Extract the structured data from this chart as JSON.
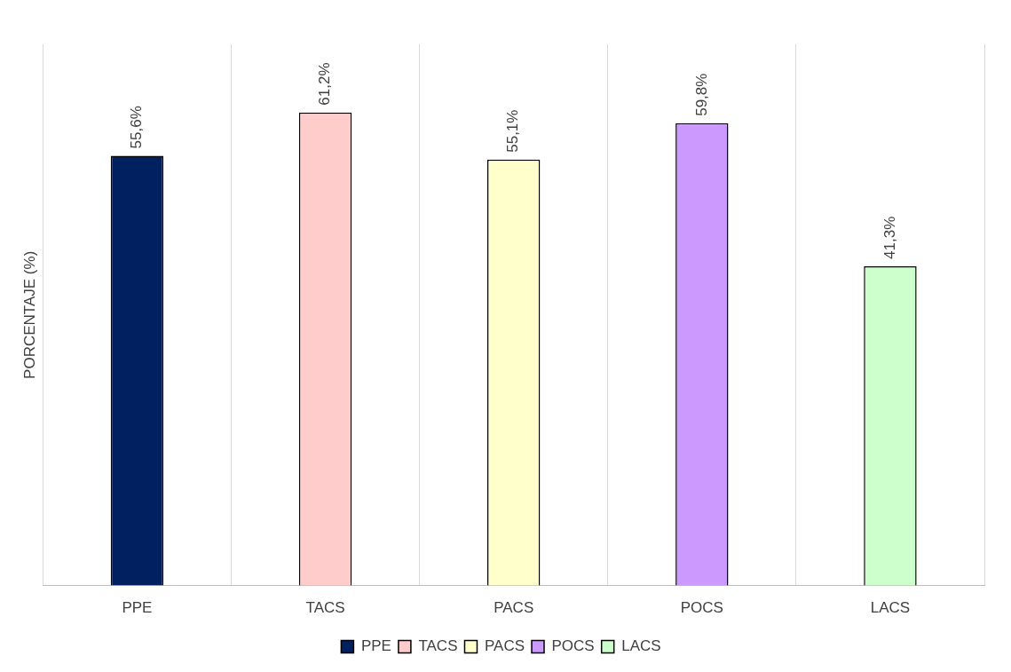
{
  "chart_data": {
    "type": "bar",
    "ylabel": "PORCENTAJE (%)",
    "categories": [
      "PPE",
      "TACS",
      "PACS",
      "POCS",
      "LACS"
    ],
    "series": [
      {
        "name": "PPE",
        "color": "#002060",
        "values": [
          55.6,
          null,
          null,
          null,
          null
        ],
        "value_labels": [
          "55,6%",
          null,
          null,
          null,
          null
        ]
      },
      {
        "name": "TACS",
        "color": "#ffcccc",
        "values": [
          null,
          61.2,
          null,
          null,
          null
        ],
        "value_labels": [
          null,
          "61,2%",
          null,
          null,
          null
        ]
      },
      {
        "name": "PACS",
        "color": "#ffffcc",
        "values": [
          null,
          null,
          55.1,
          null,
          null
        ],
        "value_labels": [
          null,
          null,
          "55,1%",
          null,
          null
        ]
      },
      {
        "name": "POCS",
        "color": "#cc99ff",
        "values": [
          null,
          null,
          null,
          59.8,
          null
        ],
        "value_labels": [
          null,
          null,
          null,
          "59,8%",
          null
        ]
      },
      {
        "name": "LACS",
        "color": "#ccffcc",
        "values": [
          null,
          null,
          null,
          null,
          41.3
        ],
        "value_labels": [
          null,
          null,
          null,
          null,
          "41,3%"
        ]
      }
    ],
    "grid": "x",
    "legend": "bottom"
  }
}
